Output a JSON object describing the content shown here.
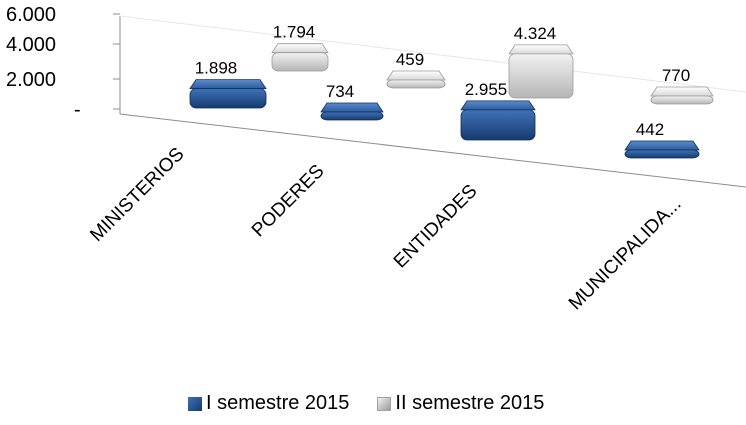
{
  "chart_data": {
    "type": "bar",
    "title": "",
    "xlabel": "",
    "ylabel": "",
    "categories": [
      "MINISTERIOS",
      "PODERES",
      "ENTIDADES",
      "MUNICIPALIDA..."
    ],
    "series": [
      {
        "name": "I semestre 2015",
        "values": [
          1898,
          734,
          2955,
          442
        ],
        "labels": [
          "1.898",
          "734",
          "2.955",
          "442"
        ],
        "color": "#1f4e8c"
      },
      {
        "name": "II semestre 2015",
        "values": [
          1794,
          459,
          4324,
          770
        ],
        "labels": [
          "1.794",
          "459",
          "4.324",
          "770"
        ],
        "color": "#c8c8c8"
      }
    ],
    "ylim": [
      0,
      6000
    ],
    "y_ticks": [
      "6.000",
      "4.000",
      "2.000",
      "-"
    ],
    "style": "3d-column",
    "legend_position": "bottom"
  }
}
